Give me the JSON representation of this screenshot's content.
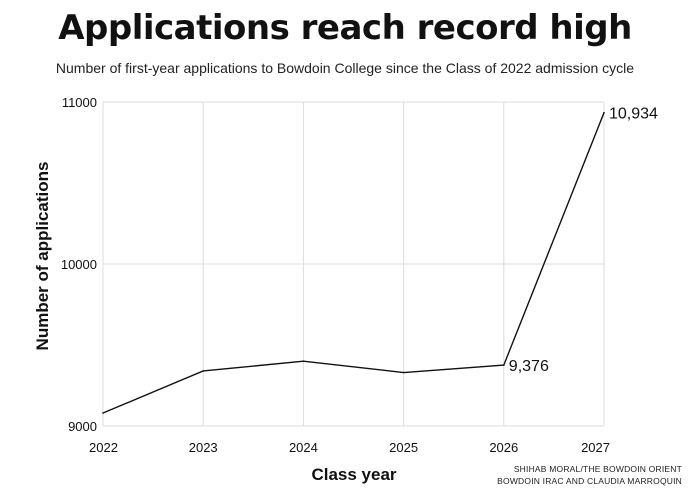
{
  "header": {
    "title": "Applications reach record high",
    "subtitle": "Number of first-year applications to Bowdoin College since the Class of 2022 admission cycle"
  },
  "credits": {
    "line1": "SHIHAB MORAL/THE BOWDOIN ORIENT",
    "line2": "BOWDOIN IRAC AND CLAUDIA MARROQUIN"
  },
  "chart_data": {
    "type": "line",
    "title": "Applications reach record high",
    "xlabel": "Class year",
    "ylabel": "Number of applications",
    "x": [
      "2022",
      "2023",
      "2024",
      "2025",
      "2026",
      "2027"
    ],
    "series": [
      {
        "values": [
          9080,
          9340,
          9400,
          9330,
          9376,
          10934
        ]
      }
    ],
    "ylim": [
      9000,
      11000
    ],
    "yticks": [
      9000,
      10000,
      11000
    ],
    "ytick_labels": [
      "9000",
      "10000",
      "11000"
    ],
    "data_labels": [
      {
        "index": 4,
        "text": "9,376"
      },
      {
        "index": 5,
        "text": "10,934"
      }
    ],
    "grid": true,
    "line_color": "#111111",
    "grid_color": "#dcdcdc"
  }
}
